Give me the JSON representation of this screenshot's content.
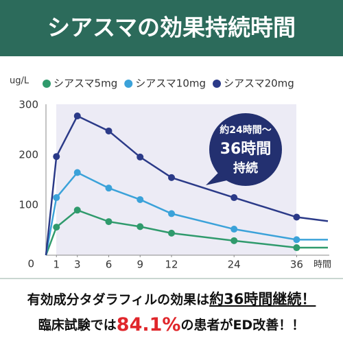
{
  "chart_data": {
    "type": "line",
    "title": "シアスマの効果持続時間",
    "y_unit": "ug/L",
    "x_label": "時間",
    "x": [
      0,
      1,
      3,
      6,
      9,
      12,
      24,
      36,
      42
    ],
    "xticks": [
      1,
      3,
      6,
      9,
      12,
      24,
      36
    ],
    "xlim": [
      0,
      42
    ],
    "ylim": [
      0,
      300
    ],
    "yticks": [
      0,
      100,
      200,
      300
    ],
    "series": [
      {
        "name": "シアスマ5mg",
        "color": "#2f9a6c",
        "values": [
          0,
          56,
          90,
          67,
          57,
          44,
          29,
          15,
          15
        ]
      },
      {
        "name": "シアスマ10mg",
        "color": "#3ba2d9",
        "values": [
          0,
          115,
          165,
          134,
          111,
          83,
          52,
          31,
          31
        ]
      },
      {
        "name": "シアスマ20mg",
        "color": "#2b3a88",
        "values": [
          0,
          197,
          278,
          248,
          196,
          155,
          115,
          76,
          68
        ]
      }
    ],
    "callout": [
      "約24時間～",
      "36時間",
      "持続"
    ]
  },
  "footer": {
    "line1": [
      "有効成分タダラフィルの効果は",
      "約36時間継続！"
    ],
    "line2": [
      "臨床試験では",
      "84.1%",
      "の患者がED改善！！"
    ]
  }
}
